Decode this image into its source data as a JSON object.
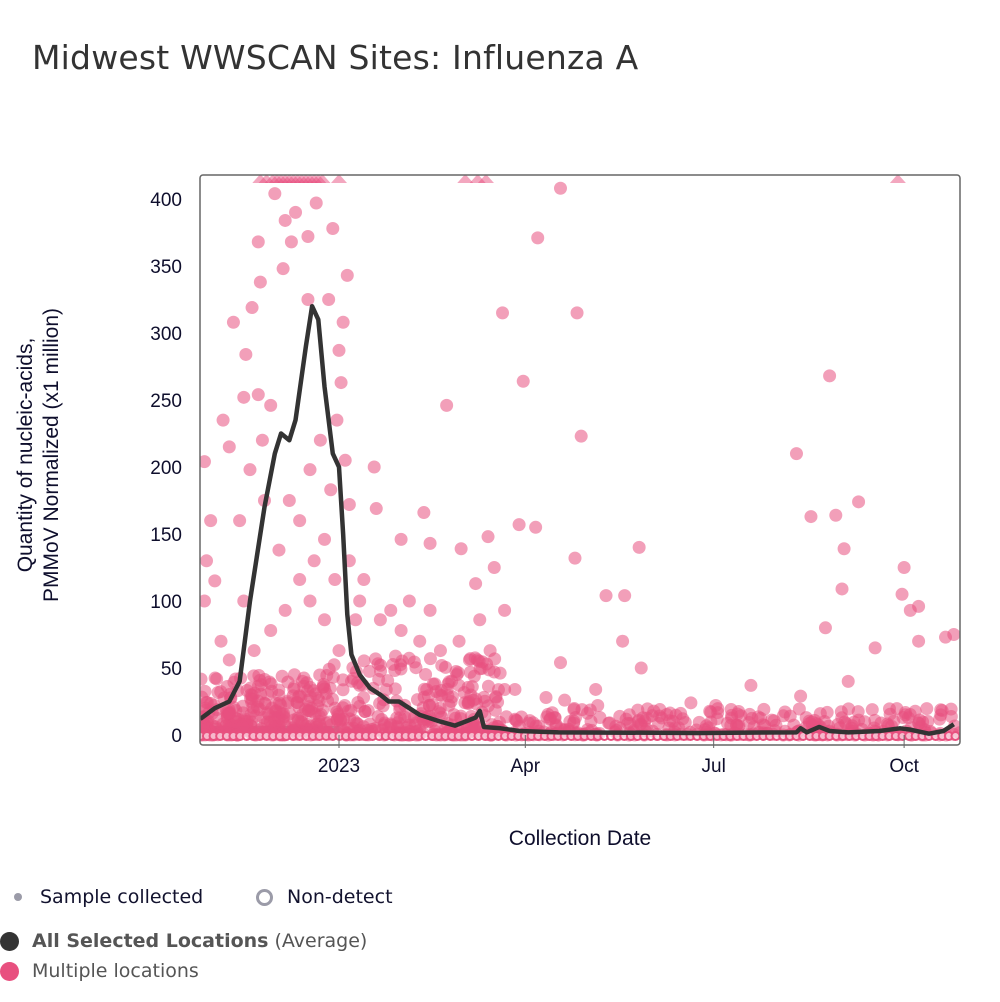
{
  "title": "Midwest WWSCAN Sites: Influenza A",
  "legend": {
    "sample_collected": "Sample collected",
    "non_detect": "Non-detect",
    "average_bold": "All Selected Locations",
    "average_suffix": "(Average)",
    "multiple": "Multiple locations"
  },
  "colors": {
    "points": "#e8507f",
    "line": "#333333",
    "sample": "#9b9ba8",
    "nondetect": "#9b9ba8"
  },
  "chart_data": {
    "type": "scatter",
    "title": "Midwest WWSCAN Sites: Influenza A",
    "xlabel": "Collection Date",
    "ylabel_lines": [
      "Quantity of nucleic-acids,",
      "PMMoV Normalized (x1 million)"
    ],
    "x_unit": "days since 2023-01-01",
    "xlim": [
      -67,
      300
    ],
    "ylim": [
      0,
      415
    ],
    "yticks": [
      0,
      50,
      100,
      150,
      200,
      250,
      300,
      350,
      400
    ],
    "xticks": [
      {
        "day": 0,
        "label": "2023"
      },
      {
        "day": 90,
        "label": "Apr"
      },
      {
        "day": 181,
        "label": "Jul"
      },
      {
        "day": 273,
        "label": "Oct"
      }
    ],
    "average_line": {
      "name": "All Selected Locations (Average)",
      "points": [
        [
          -67,
          12
        ],
        [
          -60,
          20
        ],
        [
          -53,
          25
        ],
        [
          -48,
          40
        ],
        [
          -43,
          100
        ],
        [
          -39,
          140
        ],
        [
          -36,
          170
        ],
        [
          -31,
          210
        ],
        [
          -28,
          225
        ],
        [
          -24,
          220
        ],
        [
          -21,
          235
        ],
        [
          -16,
          290
        ],
        [
          -13,
          320
        ],
        [
          -10,
          310
        ],
        [
          -7,
          260
        ],
        [
          -3,
          210
        ],
        [
          0,
          200
        ],
        [
          2,
          150
        ],
        [
          4,
          90
        ],
        [
          6,
          60
        ],
        [
          10,
          45
        ],
        [
          15,
          35
        ],
        [
          20,
          30
        ],
        [
          24,
          25
        ],
        [
          29,
          25
        ],
        [
          34,
          20
        ],
        [
          39,
          15
        ],
        [
          49,
          10
        ],
        [
          56,
          7
        ],
        [
          61,
          10
        ],
        [
          66,
          13
        ],
        [
          68,
          18
        ],
        [
          70,
          6
        ],
        [
          78,
          5
        ],
        [
          87,
          3
        ],
        [
          106,
          2
        ],
        [
          174,
          1.5
        ],
        [
          221,
          2
        ],
        [
          223,
          5
        ],
        [
          226,
          2
        ],
        [
          232,
          6
        ],
        [
          237,
          3
        ],
        [
          246,
          2
        ],
        [
          261,
          3
        ],
        [
          271,
          5
        ],
        [
          276,
          4
        ],
        [
          285,
          1
        ],
        [
          292,
          3
        ],
        [
          297,
          8
        ]
      ]
    },
    "overflow_markers_days": [
      -38,
      -35,
      -32,
      -30,
      -28,
      -26,
      -24,
      -22,
      -20,
      -18,
      -16,
      -14,
      -12,
      -10,
      -8,
      0,
      61,
      67,
      71,
      270
    ],
    "points": [
      [
        -31,
        404
      ],
      [
        -26,
        384
      ],
      [
        -21,
        390
      ],
      [
        -11,
        397
      ],
      [
        -3,
        378
      ],
      [
        4,
        343
      ],
      [
        -39,
        368
      ],
      [
        -23,
        368
      ],
      [
        -15,
        372
      ],
      [
        2,
        308
      ],
      [
        -15,
        325
      ],
      [
        -5,
        325
      ],
      [
        -27,
        348
      ],
      [
        -38,
        338
      ],
      [
        -42,
        319
      ],
      [
        -51,
        308
      ],
      [
        -45,
        284
      ],
      [
        -39,
        254
      ],
      [
        -46,
        252
      ],
      [
        -56,
        235
      ],
      [
        -53,
        215
      ],
      [
        -65,
        204
      ],
      [
        -37,
        220
      ],
      [
        -33,
        246
      ],
      [
        0,
        287
      ],
      [
        1,
        263
      ],
      [
        -1,
        235
      ],
      [
        3,
        205
      ],
      [
        17,
        200
      ],
      [
        5,
        172
      ],
      [
        18,
        169
      ],
      [
        30,
        146
      ],
      [
        44,
        143
      ],
      [
        41,
        166
      ],
      [
        52,
        246
      ],
      [
        59,
        139
      ],
      [
        66,
        113
      ],
      [
        72,
        148
      ],
      [
        75,
        125
      ],
      [
        79,
        315
      ],
      [
        89,
        264
      ],
      [
        96,
        371
      ],
      [
        107,
        408
      ],
      [
        87,
        157
      ],
      [
        95,
        155
      ],
      [
        115,
        315
      ],
      [
        117,
        223
      ],
      [
        114,
        132
      ],
      [
        145,
        140
      ],
      [
        129,
        104
      ],
      [
        138,
        104
      ],
      [
        137,
        70
      ],
      [
        146,
        50
      ],
      [
        107,
        54
      ],
      [
        221,
        210
      ],
      [
        237,
        268
      ],
      [
        228,
        163
      ],
      [
        240,
        164
      ],
      [
        244,
        139
      ],
      [
        251,
        174
      ],
      [
        243,
        109
      ],
      [
        235,
        80
      ],
      [
        273,
        125
      ],
      [
        272,
        105
      ],
      [
        276,
        93
      ],
      [
        280,
        96
      ],
      [
        293,
        73
      ],
      [
        297,
        75
      ],
      [
        280,
        70
      ],
      [
        259,
        65
      ],
      [
        246,
        40
      ],
      [
        223,
        29
      ],
      [
        199,
        37
      ],
      [
        182,
        22
      ],
      [
        170,
        24
      ],
      [
        155,
        19
      ],
      [
        124,
        34
      ],
      [
        125,
        22
      ],
      [
        109,
        26
      ],
      [
        100,
        28
      ],
      [
        85,
        34
      ],
      [
        80,
        34
      ],
      [
        -62,
        160
      ],
      [
        -65,
        100
      ],
      [
        -64,
        130
      ],
      [
        -57,
        70
      ],
      [
        -53,
        56
      ],
      [
        -60,
        115
      ],
      [
        -48,
        160
      ],
      [
        -43,
        198
      ],
      [
        -36,
        175
      ],
      [
        -29,
        138
      ],
      [
        -24,
        175
      ],
      [
        -19,
        160
      ],
      [
        -14,
        198
      ],
      [
        -9,
        220
      ],
      [
        -4,
        183
      ],
      [
        -7,
        146
      ],
      [
        -19,
        116
      ],
      [
        -14,
        100
      ],
      [
        -26,
        93
      ],
      [
        -33,
        78
      ],
      [
        -41,
        63
      ],
      [
        -46,
        100
      ],
      [
        -12,
        130
      ],
      [
        -7,
        86
      ],
      [
        -2,
        116
      ],
      [
        0,
        63
      ],
      [
        5,
        130
      ],
      [
        10,
        100
      ],
      [
        8,
        86
      ],
      [
        12,
        116
      ],
      [
        20,
        86
      ],
      [
        25,
        93
      ],
      [
        30,
        78
      ],
      [
        34,
        100
      ],
      [
        39,
        70
      ],
      [
        44,
        93
      ],
      [
        49,
        63
      ],
      [
        58,
        70
      ],
      [
        63,
        56
      ],
      [
        68,
        86
      ],
      [
        73,
        63
      ],
      [
        80,
        93
      ]
    ],
    "dense_band": {
      "periods": [
        [
          -67,
          -5,
          45
        ],
        [
          -5,
          80,
          60
        ],
        [
          80,
          300,
          20
        ]
      ],
      "count": 900
    },
    "non_detect_days_range": [
      -67,
      300
    ],
    "sample_rug_days_range": [
      -60,
      0
    ]
  }
}
